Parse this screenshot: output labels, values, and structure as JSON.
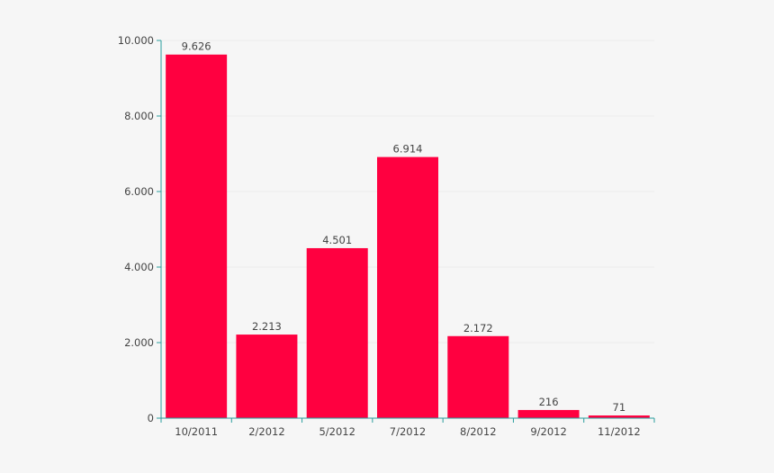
{
  "chart_data": {
    "type": "bar",
    "categories": [
      "10/2011",
      "2/2012",
      "5/2012",
      "7/2012",
      "8/2012",
      "9/2012",
      "11/2012"
    ],
    "values": [
      9626,
      2213,
      4501,
      6914,
      2172,
      216,
      71
    ],
    "data_labels": [
      "9.626",
      "2.213",
      "4.501",
      "6.914",
      "2.172",
      "216",
      "71"
    ],
    "y_ticks": [
      0,
      2000,
      4000,
      6000,
      8000,
      10000
    ],
    "y_tick_labels": [
      "0",
      "2.000",
      "4.000",
      "6.000",
      "8.000",
      "10.000"
    ],
    "ylim": [
      0,
      10000
    ],
    "title": "",
    "xlabel": "",
    "ylabel": "",
    "grid": true,
    "legend": "none",
    "colors": {
      "bar": "#ff0040",
      "axis": "#2a9d9d",
      "grid": "#ececec",
      "text": "#444444",
      "background": "#f6f6f6"
    }
  }
}
